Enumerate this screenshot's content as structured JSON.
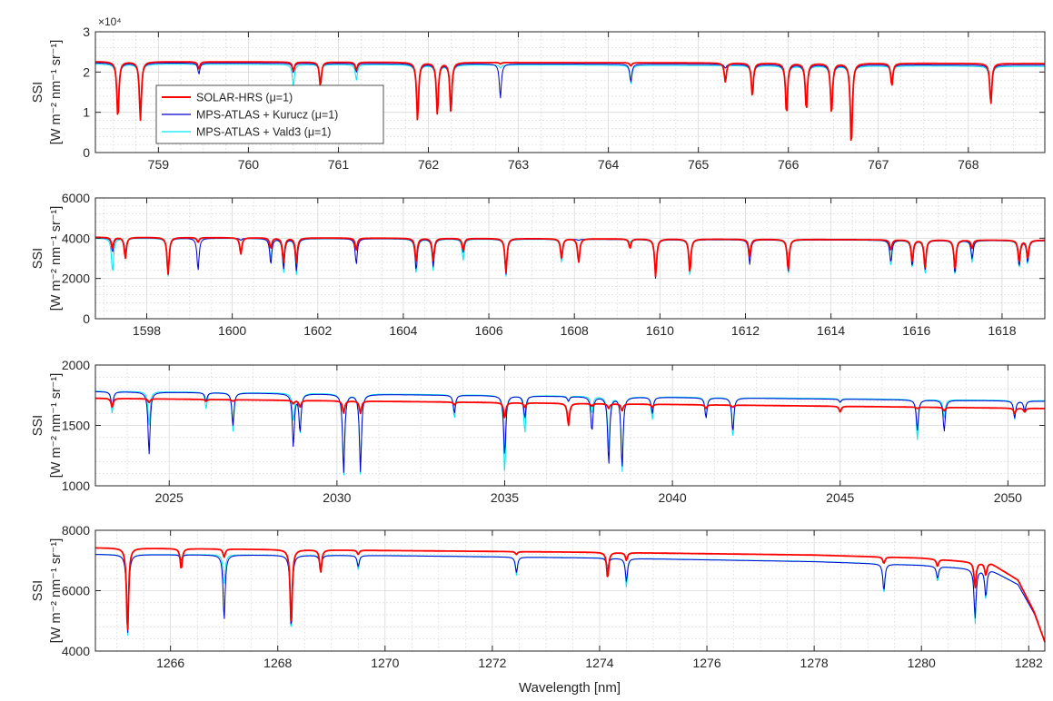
{
  "figure": {
    "xlabel": "Wavelength [nm]",
    "ylabel_line1": "SSI",
    "ylabel_line2": "[W m⁻² nm⁻¹ sr⁻¹]"
  },
  "colors": {
    "solar_hrs": "#ff0000",
    "kurucz": "#0000cd",
    "vald3": "#00e5ee",
    "grid_major": "#d9d9d9",
    "grid_minor": "#c8c8c8",
    "axis": "#262626"
  },
  "legend": {
    "placement": "inside-left of panel 1",
    "entries": [
      {
        "label": "SOLAR-HRS (μ=1)",
        "series": "solar_hrs"
      },
      {
        "label": "MPS-ATLAS + Kurucz (μ=1)",
        "series": "kurucz"
      },
      {
        "label": "MPS-ATLAS + Vald3 (μ=1)",
        "series": "vald3"
      }
    ]
  },
  "chart_data": [
    {
      "type": "line",
      "panel": 1,
      "xlim": [
        758.3,
        768.85
      ],
      "ylim": [
        0,
        30000
      ],
      "xticks": [
        759,
        760,
        761,
        762,
        763,
        764,
        765,
        766,
        767,
        768
      ],
      "xtick_labels": [
        "759",
        "760",
        "761",
        "762",
        "763",
        "764",
        "765",
        "766",
        "767",
        "768"
      ],
      "yticks": [
        0,
        10000,
        20000,
        30000
      ],
      "ytick_labels": [
        "0",
        "1",
        "2",
        "3"
      ],
      "y_exponent_label": "×10⁴",
      "grid": "major and minor",
      "continuum": {
        "solar_hrs": [
          22600,
          22100
        ],
        "kurucz": [
          22300,
          21700
        ],
        "vald3": [
          22000,
          21400
        ]
      },
      "lines": [
        {
          "x": 758.55,
          "y_hrs": 8500,
          "y_kur": 8500,
          "y_vald": 9000
        },
        {
          "x": 758.8,
          "y_hrs": 8000,
          "y_kur": 8700,
          "y_vald": 9500
        },
        {
          "x": 759.45,
          "y_hrs": 20800,
          "y_kur": 19500,
          "y_vald": 20800
        },
        {
          "x": 760.5,
          "y_hrs": 20200,
          "y_kur": 19800,
          "y_vald": 16500
        },
        {
          "x": 760.8,
          "y_hrs": 16500,
          "y_kur": 17500,
          "y_vald": 18000
        },
        {
          "x": 761.2,
          "y_hrs": 20500,
          "y_kur": 20000,
          "y_vald": 18000
        },
        {
          "x": 761.88,
          "y_hrs": 8000,
          "y_kur": 8000,
          "y_vald": 9000
        },
        {
          "x": 762.1,
          "y_hrs": 9500,
          "y_kur": 9500,
          "y_vald": 10000
        },
        {
          "x": 762.25,
          "y_hrs": 10000,
          "y_kur": 10000,
          "y_vald": 11000
        },
        {
          "x": 762.8,
          "y_hrs": 22000,
          "y_kur": 13500,
          "y_vald": 21000
        },
        {
          "x": 764.25,
          "y_hrs": 21500,
          "y_kur": 17500,
          "y_vald": 17000
        },
        {
          "x": 765.3,
          "y_hrs": 17500,
          "y_kur": 21000,
          "y_vald": 21000
        },
        {
          "x": 765.6,
          "y_hrs": 14000,
          "y_kur": 14000,
          "y_vald": 15000
        },
        {
          "x": 765.98,
          "y_hrs": 9500,
          "y_kur": 9500,
          "y_vald": 9500
        },
        {
          "x": 766.2,
          "y_hrs": 10500,
          "y_kur": 10500,
          "y_vald": 11000
        },
        {
          "x": 766.48,
          "y_hrs": 9500,
          "y_kur": 9500,
          "y_vald": 10000
        },
        {
          "x": 766.7,
          "y_hrs": 1500,
          "y_kur": 4000,
          "y_vald": 5000
        },
        {
          "x": 767.15,
          "y_hrs": 16500,
          "y_kur": 17500,
          "y_vald": 17500
        },
        {
          "x": 768.25,
          "y_hrs": 12000,
          "y_kur": 12500,
          "y_vald": 12000
        }
      ]
    },
    {
      "type": "line",
      "panel": 2,
      "xlim": [
        1596.8,
        1619.0
      ],
      "ylim": [
        0,
        6000
      ],
      "xticks": [
        1598,
        1600,
        1602,
        1604,
        1606,
        1608,
        1610,
        1612,
        1614,
        1616,
        1618
      ],
      "xtick_labels": [
        "1598",
        "1600",
        "1602",
        "1604",
        "1606",
        "1608",
        "1610",
        "1612",
        "1614",
        "1616",
        "1618"
      ],
      "yticks": [
        0,
        2000,
        4000,
        6000
      ],
      "ytick_labels": [
        "0",
        "2000",
        "4000",
        "6000"
      ],
      "grid": "major and minor",
      "continuum": {
        "solar_hrs": [
          4050,
          3900
        ],
        "kurucz": [
          4020,
          3880
        ],
        "vald3": [
          4000,
          3880
        ]
      },
      "lines": [
        {
          "x": 1597.2,
          "y_hrs": 3500,
          "y_kur": 3300,
          "y_vald": 2300
        },
        {
          "x": 1597.5,
          "y_hrs": 3000,
          "y_kur": 3200,
          "y_vald": 3400
        },
        {
          "x": 1598.5,
          "y_hrs": 2200,
          "y_kur": 2200,
          "y_vald": 2100
        },
        {
          "x": 1599.2,
          "y_hrs": 3800,
          "y_kur": 2400,
          "y_vald": 3800
        },
        {
          "x": 1600.2,
          "y_hrs": 3200,
          "y_kur": 3900,
          "y_vald": 3900
        },
        {
          "x": 1600.9,
          "y_hrs": 3500,
          "y_kur": 2700,
          "y_vald": 3000
        },
        {
          "x": 1601.2,
          "y_hrs": 2800,
          "y_kur": 2500,
          "y_vald": 2300
        },
        {
          "x": 1601.5,
          "y_hrs": 2800,
          "y_kur": 2400,
          "y_vald": 2200
        },
        {
          "x": 1602.9,
          "y_hrs": 3400,
          "y_kur": 2700,
          "y_vald": 3400
        },
        {
          "x": 1604.3,
          "y_hrs": 2800,
          "y_kur": 2400,
          "y_vald": 2200
        },
        {
          "x": 1604.7,
          "y_hrs": 2900,
          "y_kur": 2600,
          "y_vald": 2400
        },
        {
          "x": 1605.4,
          "y_hrs": 3400,
          "y_kur": 3300,
          "y_vald": 2900
        },
        {
          "x": 1606.4,
          "y_hrs": 2300,
          "y_kur": 2200,
          "y_vald": 2100
        },
        {
          "x": 1607.7,
          "y_hrs": 3000,
          "y_kur": 3000,
          "y_vald": 2800
        },
        {
          "x": 1608.1,
          "y_hrs": 2800,
          "y_kur": 3900,
          "y_vald": 3900
        },
        {
          "x": 1609.3,
          "y_hrs": 3500,
          "y_kur": 3600,
          "y_vald": 3800
        },
        {
          "x": 1609.9,
          "y_hrs": 2100,
          "y_kur": 2000,
          "y_vald": 2100
        },
        {
          "x": 1610.7,
          "y_hrs": 2300,
          "y_kur": 2300,
          "y_vald": 2100
        },
        {
          "x": 1612.1,
          "y_hrs": 3100,
          "y_kur": 2700,
          "y_vald": 3300
        },
        {
          "x": 1613.0,
          "y_hrs": 2400,
          "y_kur": 2300,
          "y_vald": 2200
        },
        {
          "x": 1615.4,
          "y_hrs": 3400,
          "y_kur": 2800,
          "y_vald": 2600
        },
        {
          "x": 1615.9,
          "y_hrs": 2800,
          "y_kur": 2600,
          "y_vald": 2500
        },
        {
          "x": 1616.2,
          "y_hrs": 2500,
          "y_kur": 2400,
          "y_vald": 2200
        },
        {
          "x": 1616.9,
          "y_hrs": 2400,
          "y_kur": 2200,
          "y_vald": 2100
        },
        {
          "x": 1617.3,
          "y_hrs": 3500,
          "y_kur": 3000,
          "y_vald": 2800
        },
        {
          "x": 1618.4,
          "y_hrs": 2800,
          "y_kur": 2600,
          "y_vald": 2500
        },
        {
          "x": 1618.6,
          "y_hrs": 3000,
          "y_kur": 2800,
          "y_vald": 2700
        }
      ]
    },
    {
      "type": "line",
      "panel": 3,
      "xlim": [
        2022.8,
        2051.1
      ],
      "ylim": [
        1000,
        2000
      ],
      "xticks": [
        2025,
        2030,
        2035,
        2040,
        2045,
        2050
      ],
      "xtick_labels": [
        "2025",
        "2030",
        "2035",
        "2040",
        "2045",
        "2050"
      ],
      "yticks": [
        1000,
        1500,
        2000
      ],
      "ytick_labels": [
        "1000",
        "1500",
        "2000"
      ],
      "grid": "major and minor",
      "continuum": {
        "solar_hrs": [
          1725,
          1640
        ],
        "kurucz": [
          1780,
          1700
        ],
        "vald3": [
          1785,
          1705
        ]
      },
      "lines": [
        {
          "x": 2023.3,
          "y_hrs": 1650,
          "y_kur": 1650,
          "y_vald": 1600
        },
        {
          "x": 2024.4,
          "y_hrs": 1690,
          "y_kur": 1260,
          "y_vald": 1500
        },
        {
          "x": 2026.1,
          "y_hrs": 1700,
          "y_kur": 1700,
          "y_vald": 1640
        },
        {
          "x": 2026.9,
          "y_hrs": 1700,
          "y_kur": 1500,
          "y_vald": 1450
        },
        {
          "x": 2028.7,
          "y_hrs": 1680,
          "y_kur": 1330,
          "y_vald": 1550
        },
        {
          "x": 2028.9,
          "y_hrs": 1650,
          "y_kur": 1450,
          "y_vald": 1430
        },
        {
          "x": 2030.2,
          "y_hrs": 1600,
          "y_kur": 1100,
          "y_vald": 1080
        },
        {
          "x": 2030.7,
          "y_hrs": 1600,
          "y_kur": 1120,
          "y_vald": 1100
        },
        {
          "x": 2033.5,
          "y_hrs": 1670,
          "y_kur": 1600,
          "y_vald": 1560
        },
        {
          "x": 2035.0,
          "y_hrs": 1560,
          "y_kur": 1250,
          "y_vald": 1100
        },
        {
          "x": 2035.6,
          "y_hrs": 1650,
          "y_kur": 1560,
          "y_vald": 1440
        },
        {
          "x": 2036.9,
          "y_hrs": 1500,
          "y_kur": 1700,
          "y_vald": 1700
        },
        {
          "x": 2037.6,
          "y_hrs": 1660,
          "y_kur": 1450,
          "y_vald": 1600
        },
        {
          "x": 2038.1,
          "y_hrs": 1640,
          "y_kur": 1180,
          "y_vald": 1300
        },
        {
          "x": 2038.5,
          "y_hrs": 1620,
          "y_kur": 1150,
          "y_vald": 1100
        },
        {
          "x": 2039.4,
          "y_hrs": 1650,
          "y_kur": 1600,
          "y_vald": 1550
        },
        {
          "x": 2041.0,
          "y_hrs": 1640,
          "y_kur": 1560,
          "y_vald": 1560
        },
        {
          "x": 2041.8,
          "y_hrs": 1650,
          "y_kur": 1450,
          "y_vald": 1400
        },
        {
          "x": 2045.0,
          "y_hrs": 1610,
          "y_kur": 1690,
          "y_vald": 1690
        },
        {
          "x": 2047.3,
          "y_hrs": 1640,
          "y_kur": 1460,
          "y_vald": 1380
        },
        {
          "x": 2048.1,
          "y_hrs": 1620,
          "y_kur": 1450,
          "y_vald": 1560
        },
        {
          "x": 2050.2,
          "y_hrs": 1600,
          "y_kur": 1560,
          "y_vald": 1550
        },
        {
          "x": 2050.5,
          "y_hrs": 1610,
          "y_kur": 1620,
          "y_vald": 1600
        }
      ]
    },
    {
      "type": "line",
      "panel": 4,
      "xlim": [
        1264.6,
        1282.3
      ],
      "ylim": [
        4000,
        8000
      ],
      "xticks": [
        1266,
        1268,
        1270,
        1272,
        1274,
        1276,
        1278,
        1280,
        1282
      ],
      "xtick_labels": [
        "1266",
        "1268",
        "1270",
        "1272",
        "1274",
        "1276",
        "1278",
        "1280",
        "1282"
      ],
      "yticks": [
        4000,
        6000,
        8000
      ],
      "ytick_labels": [
        "4000",
        "6000",
        "8000"
      ],
      "grid": "major and minor",
      "continuum_anchors": {
        "x": [
          1264.6,
          1270,
          1274,
          1278,
          1280,
          1281.3,
          1281.8,
          1282.1,
          1282.3
        ],
        "solar_hrs": [
          7420,
          7330,
          7270,
          7180,
          7080,
          6900,
          6350,
          5300,
          4300
        ],
        "kurucz": [
          7200,
          7160,
          7080,
          6960,
          6840,
          6680,
          6200,
          5250,
          4300
        ],
        "vald3": [
          7210,
          7170,
          7090,
          6970,
          6850,
          6690,
          6210,
          5260,
          4300
        ]
      },
      "lines": [
        {
          "x": 1265.2,
          "y_hrs": 4600,
          "y_kur": 4500,
          "y_vald": 4400
        },
        {
          "x": 1266.2,
          "y_hrs": 6700,
          "y_kur": 7000,
          "y_vald": 7100
        },
        {
          "x": 1267.0,
          "y_hrs": 7100,
          "y_kur": 5000,
          "y_vald": 6200
        },
        {
          "x": 1268.25,
          "y_hrs": 4800,
          "y_kur": 4700,
          "y_vald": 4600
        },
        {
          "x": 1268.8,
          "y_hrs": 6600,
          "y_kur": 6700,
          "y_vald": 6800
        },
        {
          "x": 1269.5,
          "y_hrs": 7200,
          "y_kur": 6800,
          "y_vald": 6700
        },
        {
          "x": 1272.45,
          "y_hrs": 7200,
          "y_kur": 6600,
          "y_vald": 6500
        },
        {
          "x": 1274.15,
          "y_hrs": 6400,
          "y_kur": 6700,
          "y_vald": 6800
        },
        {
          "x": 1274.5,
          "y_hrs": 7000,
          "y_kur": 6300,
          "y_vald": 6100
        },
        {
          "x": 1279.3,
          "y_hrs": 6900,
          "y_kur": 6000,
          "y_vald": 5900
        },
        {
          "x": 1280.3,
          "y_hrs": 6800,
          "y_kur": 6400,
          "y_vald": 6300
        },
        {
          "x": 1281.0,
          "y_hrs": 6100,
          "y_kur": 5100,
          "y_vald": 4900
        },
        {
          "x": 1281.2,
          "y_hrs": 6500,
          "y_kur": 5800,
          "y_vald": 5700
        }
      ]
    }
  ]
}
